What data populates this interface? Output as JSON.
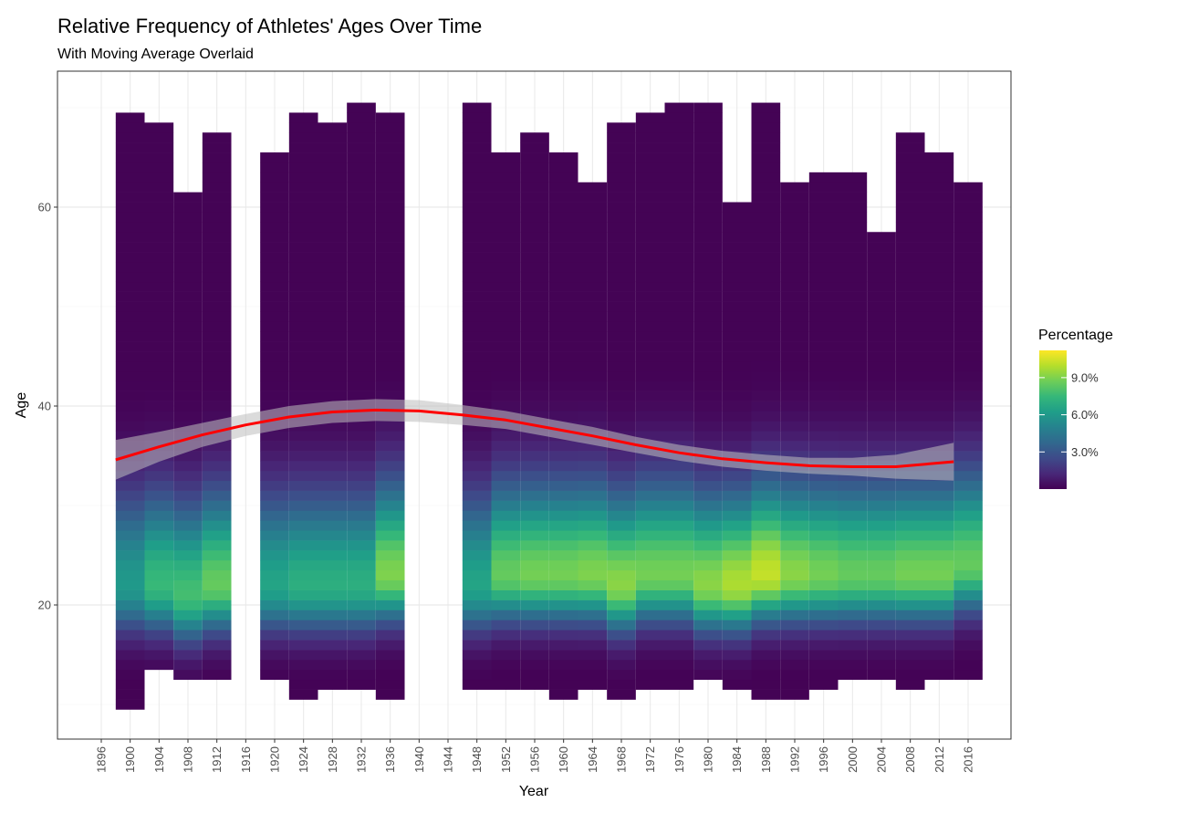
{
  "chart_data": {
    "type": "heatmap",
    "title": "Relative Frequency of Athletes' Ages Over Time",
    "subtitle": "With Moving Average Overlaid",
    "xlabel": "Year",
    "ylabel": "Age",
    "x_ticks": [
      1896,
      1900,
      1904,
      1908,
      1912,
      1916,
      1920,
      1924,
      1928,
      1932,
      1936,
      1940,
      1944,
      1948,
      1952,
      1956,
      1960,
      1964,
      1968,
      1972,
      1976,
      1980,
      1984,
      1988,
      1992,
      1996,
      2000,
      2004,
      2008,
      2012,
      2016
    ],
    "y_ticks": [
      20,
      40,
      60
    ],
    "ylim": [
      5,
      72
    ],
    "grid": true,
    "legend": {
      "title": "Percentage",
      "position": "right",
      "breaks": [
        {
          "value": 0.03,
          "label": "3.0%"
        },
        {
          "value": 0.06,
          "label": "6.0%"
        },
        {
          "value": 0.09,
          "label": "9.0%"
        }
      ],
      "range": [
        0,
        0.112
      ]
    },
    "colors": {
      "viridis": [
        "#440154",
        "#482878",
        "#3e4a89",
        "#31688e",
        "#26828e",
        "#1f9e89",
        "#35b779",
        "#6ece58",
        "#b5de2b",
        "#fde725"
      ],
      "smooth_line": "#ff0000",
      "smooth_band": "#bdbdbd"
    },
    "years": [
      1900,
      1904,
      1908,
      1912,
      1920,
      1924,
      1928,
      1932,
      1936,
      1948,
      1952,
      1956,
      1960,
      1964,
      1968,
      1972,
      1976,
      1980,
      1984,
      1988,
      1992,
      1996,
      2000,
      2004,
      2008,
      2012,
      2016
    ],
    "peak_age": [
      22,
      22,
      21,
      22,
      22,
      22,
      22,
      22,
      23,
      22,
      23,
      23,
      23,
      23,
      22,
      23,
      23,
      22,
      22,
      23,
      23,
      23,
      23,
      23,
      23,
      23,
      24
    ],
    "peak_pct": [
      0.06,
      0.075,
      0.078,
      0.085,
      0.065,
      0.07,
      0.07,
      0.07,
      0.09,
      0.065,
      0.085,
      0.088,
      0.088,
      0.09,
      0.092,
      0.088,
      0.088,
      0.092,
      0.098,
      0.102,
      0.092,
      0.088,
      0.085,
      0.085,
      0.088,
      0.088,
      0.085
    ],
    "age_range": [
      [
        10,
        69
      ],
      [
        14,
        68
      ],
      [
        13,
        61
      ],
      [
        13,
        67
      ],
      [
        13,
        65
      ],
      [
        11,
        69
      ],
      [
        12,
        68
      ],
      [
        12,
        70
      ],
      [
        11,
        69
      ],
      [
        12,
        70
      ],
      [
        12,
        65
      ],
      [
        12,
        67
      ],
      [
        11,
        65
      ],
      [
        12,
        62
      ],
      [
        11,
        68
      ],
      [
        12,
        69
      ],
      [
        12,
        70
      ],
      [
        13,
        70
      ],
      [
        12,
        60
      ],
      [
        11,
        70
      ],
      [
        11,
        62
      ],
      [
        12,
        63
      ],
      [
        13,
        63
      ],
      [
        13,
        57
      ],
      [
        12,
        67
      ],
      [
        13,
        65
      ],
      [
        13,
        62
      ]
    ],
    "smooth": {
      "x": [
        1898,
        1904,
        1910,
        1916,
        1922,
        1928,
        1934,
        1940,
        1946,
        1952,
        1958,
        1964,
        1970,
        1976,
        1982,
        1988,
        1994,
        2000,
        2006,
        2014
      ],
      "y": [
        34.6,
        35.9,
        37.1,
        38.1,
        38.9,
        39.4,
        39.6,
        39.5,
        39.1,
        38.6,
        37.8,
        37.0,
        36.1,
        35.3,
        34.7,
        34.3,
        34.0,
        33.9,
        33.9,
        34.4
      ],
      "band_half_width": [
        2.0,
        1.5,
        1.2,
        1.1,
        1.1,
        1.1,
        1.1,
        1.1,
        1.0,
        0.9,
        0.9,
        0.9,
        0.8,
        0.8,
        0.8,
        0.8,
        0.8,
        0.9,
        1.2,
        1.9
      ]
    }
  }
}
